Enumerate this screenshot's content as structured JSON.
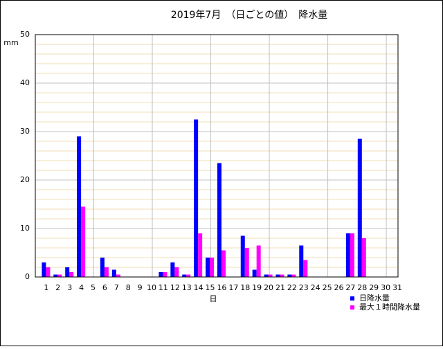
{
  "chart_data": {
    "type": "bar",
    "title": "2019年7月　（日ごとの値）　降水量",
    "y_unit": "mm",
    "x_label": "日",
    "categories": [
      "1",
      "2",
      "3",
      "4",
      "5",
      "6",
      "7",
      "8",
      "9",
      "10",
      "11",
      "12",
      "13",
      "14",
      "15",
      "16",
      "17",
      "18",
      "19",
      "20",
      "21",
      "22",
      "23",
      "24",
      "25",
      "26",
      "27",
      "28",
      "29",
      "30",
      "31"
    ],
    "series": [
      {
        "name": "日降水量",
        "color": "#0000ff",
        "values": [
          3,
          0.5,
          2,
          29,
          0,
          4,
          1.5,
          0,
          0,
          0,
          1,
          3,
          0.5,
          32.5,
          4,
          23.5,
          0,
          8.5,
          1.5,
          0.5,
          0.5,
          0.5,
          6.5,
          0,
          0,
          0,
          9,
          28.5,
          0,
          0,
          0
        ]
      },
      {
        "name": "最大１時間降水量",
        "color": "#ff00ff",
        "values": [
          2,
          0.5,
          1,
          14.5,
          0,
          2,
          0.5,
          0,
          0,
          0,
          1,
          2,
          0.5,
          9,
          4,
          5.5,
          0,
          6,
          6.5,
          0.5,
          0.5,
          0.5,
          3.5,
          0,
          0,
          0,
          9,
          8,
          0,
          0,
          0
        ]
      }
    ],
    "ylim": [
      0,
      50
    ],
    "yticks": [
      0,
      10,
      20,
      30,
      40,
      50
    ],
    "minor_yticks": [
      2,
      4,
      6,
      8,
      12,
      14,
      16,
      18,
      22,
      24,
      26,
      28,
      32,
      34,
      36,
      38,
      42,
      44,
      46,
      48
    ],
    "grid": true
  }
}
